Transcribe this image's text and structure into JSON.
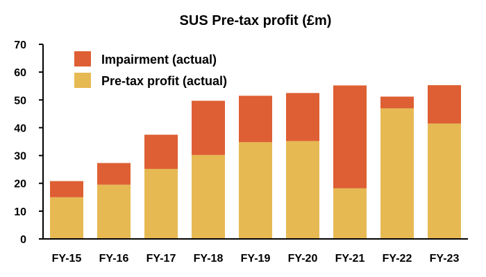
{
  "colors": {
    "impairment": "#de5f33",
    "pretax": "#e6b953",
    "axis": "#000000",
    "background": "#ffffff"
  },
  "chart_data": {
    "type": "bar",
    "stacked": true,
    "title": "SUS Pre-tax profit (£m)",
    "xlabel": "",
    "ylabel": "",
    "categories": [
      "FY-15",
      "FY-16",
      "FY-17",
      "FY-18",
      "FY-19",
      "FY-20",
      "FY-21",
      "FY-22",
      "FY-23"
    ],
    "series": [
      {
        "name": "Pre-tax profit (actual)",
        "values": [
          15.0,
          19.5,
          25.2,
          30.2,
          34.8,
          35.2,
          18.2,
          47.0,
          41.5
        ]
      },
      {
        "name": "Impairment (actual)",
        "values": [
          5.8,
          7.8,
          12.3,
          19.5,
          16.7,
          17.3,
          37.0,
          4.2,
          13.8
        ]
      }
    ],
    "ylim": [
      0,
      70
    ],
    "yticks": [
      0,
      10,
      20,
      30,
      40,
      50,
      60,
      70
    ],
    "grid": false,
    "legend_position": "top-left"
  }
}
